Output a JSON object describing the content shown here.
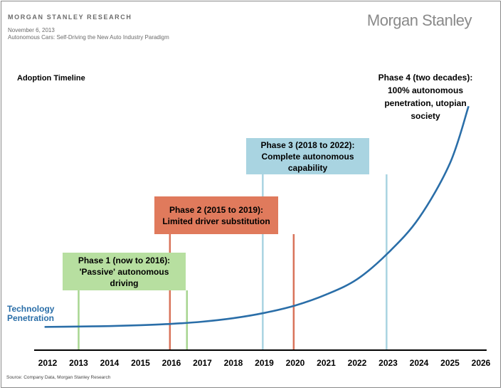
{
  "header": {
    "org": "MORGAN STANLEY RESEARCH",
    "date": "November 6, 2013",
    "report_title": "Autonomous Cars: Self-Driving the New Auto Industry Paradigm",
    "logo": "Morgan Stanley"
  },
  "footer": {
    "source": "Source: Company Data, Morgan Stanley Research"
  },
  "chart_data": {
    "type": "line",
    "title": "Adoption Timeline",
    "xlabel": "",
    "ylabel": "",
    "x": [
      2012,
      2013,
      2014,
      2015,
      2016,
      2017,
      2018,
      2019,
      2020,
      2021,
      2022,
      2023,
      2024,
      2025,
      2026
    ],
    "xlim": [
      2012,
      2026
    ],
    "grid": false,
    "series": [
      {
        "name": "Technology Penetration",
        "color": "#2a6ea8",
        "points": [
          [
            2011.9,
            1
          ],
          [
            2013,
            2
          ],
          [
            2014,
            3
          ],
          [
            2015,
            5
          ],
          [
            2016,
            8
          ],
          [
            2017,
            13
          ],
          [
            2018,
            21
          ],
          [
            2019,
            33
          ],
          [
            2020,
            50
          ],
          [
            2021,
            75
          ],
          [
            2022,
            110
          ],
          [
            2023,
            170
          ],
          [
            2024,
            250
          ],
          [
            2025,
            375
          ],
          [
            2025.6,
            505
          ]
        ]
      }
    ],
    "ylim": [
      0,
      520
    ],
    "phases": [
      {
        "id": "phase1",
        "label": "Phase 1 (now to 2016): 'Passive' autonomous driving",
        "start": 2013.0,
        "end": 2016.5,
        "color": "#b7dfa0",
        "line_color": "#a7d590"
      },
      {
        "id": "phase2",
        "label": "Phase 2 (2015 to 2019): Limited driver substitution",
        "start": 2015.95,
        "end": 2019.95,
        "color": "#e07a5c",
        "line_color": "#d9735a"
      },
      {
        "id": "phase3",
        "label": "Phase 3 (2018 to 2022): Complete autonomous capability",
        "start": 2018.95,
        "end": 2022.95,
        "color": "#a9d4e1",
        "line_color": "#a9d4e1"
      },
      {
        "id": "phase4",
        "label": "Phase 4 (two decades): 100% autonomous penetration, utopian society"
      }
    ]
  }
}
